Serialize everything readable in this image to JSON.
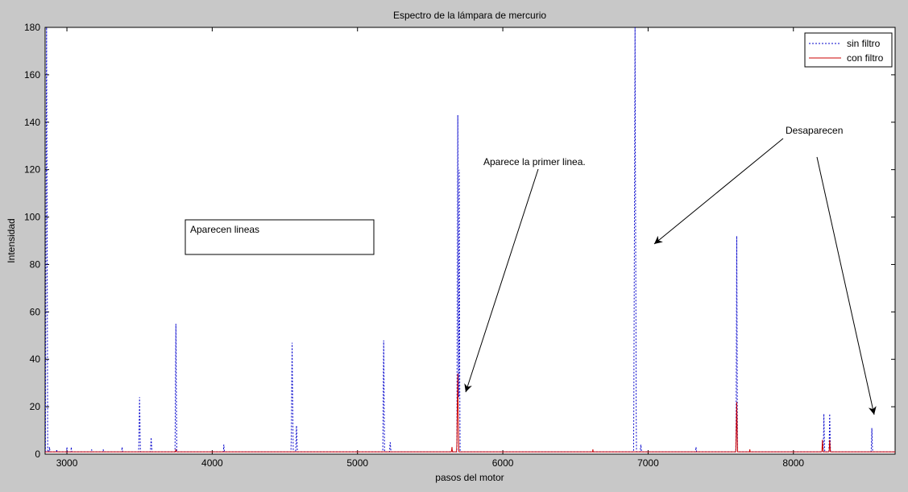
{
  "chart_data": {
    "type": "line",
    "title": "Espectro de la lámpara de mercurio",
    "xlabel": "pasos del motor",
    "ylabel": "Intensidad",
    "xlim": [
      2850,
      8700
    ],
    "ylim": [
      0,
      180
    ],
    "grid": false,
    "legend_position": "top-right",
    "x_ticks": [
      3000,
      4000,
      5000,
      6000,
      7000,
      8000
    ],
    "y_ticks": [
      0,
      20,
      40,
      60,
      80,
      100,
      120,
      140,
      160,
      180
    ],
    "series": [
      {
        "name": "sin filtro",
        "color": "#0000cc",
        "dash": "dotted",
        "baseline": 1,
        "peaks": [
          {
            "x": 2860,
            "y": 180,
            "w": 8
          },
          {
            "x": 2880,
            "y": 3,
            "w": 5
          },
          {
            "x": 2930,
            "y": 2,
            "w": 4
          },
          {
            "x": 3000,
            "y": 3,
            "w": 4
          },
          {
            "x": 3030,
            "y": 3,
            "w": 4
          },
          {
            "x": 3170,
            "y": 2,
            "w": 4
          },
          {
            "x": 3250,
            "y": 2,
            "w": 4
          },
          {
            "x": 3380,
            "y": 3,
            "w": 5
          },
          {
            "x": 3500,
            "y": 24,
            "w": 6
          },
          {
            "x": 3580,
            "y": 7,
            "w": 6
          },
          {
            "x": 3750,
            "y": 55,
            "w": 6
          },
          {
            "x": 4080,
            "y": 4,
            "w": 5
          },
          {
            "x": 4550,
            "y": 47,
            "w": 7
          },
          {
            "x": 4580,
            "y": 12,
            "w": 6
          },
          {
            "x": 5180,
            "y": 48,
            "w": 6
          },
          {
            "x": 5225,
            "y": 6,
            "w": 5
          },
          {
            "x": 5690,
            "y": 143,
            "w": 6
          },
          {
            "x": 5700,
            "y": 120,
            "w": 5
          },
          {
            "x": 6910,
            "y": 180,
            "w": 9
          },
          {
            "x": 6950,
            "y": 4,
            "w": 6
          },
          {
            "x": 7330,
            "y": 3,
            "w": 5
          },
          {
            "x": 7610,
            "y": 92,
            "w": 5
          },
          {
            "x": 8210,
            "y": 17,
            "w": 5
          },
          {
            "x": 8250,
            "y": 17,
            "w": 5
          },
          {
            "x": 8540,
            "y": 11,
            "w": 5
          }
        ]
      },
      {
        "name": "con filtro",
        "color": "#cc0000",
        "dash": "solid",
        "baseline": 1,
        "peaks": [
          {
            "x": 3750,
            "y": 2,
            "w": 5
          },
          {
            "x": 5650,
            "y": 3,
            "w": 5
          },
          {
            "x": 5690,
            "y": 34,
            "w": 7
          },
          {
            "x": 6620,
            "y": 2,
            "w": 4
          },
          {
            "x": 7610,
            "y": 22,
            "w": 6
          },
          {
            "x": 7700,
            "y": 2,
            "w": 4
          },
          {
            "x": 8200,
            "y": 6,
            "w": 5
          },
          {
            "x": 8250,
            "y": 6,
            "w": 5
          }
        ]
      }
    ],
    "annotations": [
      {
        "text": "Aparecen lineas",
        "boxed": true
      },
      {
        "text": "Aparece la primer linea."
      },
      {
        "text": "Desaparecen"
      }
    ]
  }
}
